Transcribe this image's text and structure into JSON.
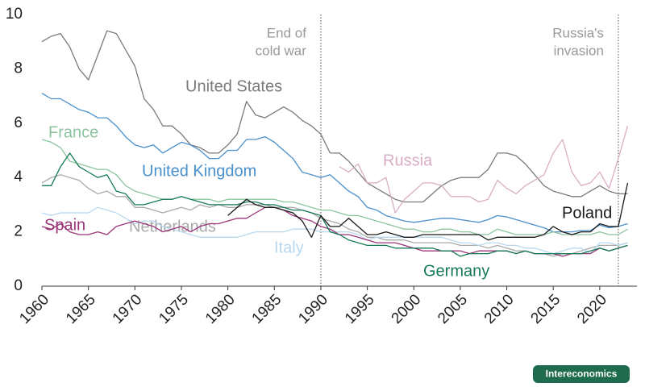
{
  "chart_data": {
    "type": "line",
    "x": [
      1960,
      1961,
      1962,
      1963,
      1964,
      1965,
      1966,
      1967,
      1968,
      1969,
      1970,
      1971,
      1972,
      1973,
      1974,
      1975,
      1976,
      1977,
      1978,
      1979,
      1980,
      1981,
      1982,
      1983,
      1984,
      1985,
      1986,
      1987,
      1988,
      1989,
      1990,
      1991,
      1992,
      1993,
      1994,
      1995,
      1996,
      1997,
      1998,
      1999,
      2000,
      2001,
      2002,
      2003,
      2004,
      2005,
      2006,
      2007,
      2008,
      2009,
      2010,
      2011,
      2012,
      2013,
      2014,
      2015,
      2016,
      2017,
      2018,
      2019,
      2020,
      2021,
      2022,
      2023
    ],
    "series": [
      {
        "name": "United States",
        "color": "#7a7a7a",
        "values": [
          9.0,
          9.2,
          9.3,
          8.8,
          8.0,
          7.6,
          8.5,
          9.4,
          9.3,
          8.7,
          8.1,
          6.9,
          6.5,
          5.9,
          5.9,
          5.6,
          5.2,
          5.1,
          4.9,
          4.9,
          5.2,
          5.6,
          6.8,
          6.3,
          6.2,
          6.4,
          6.6,
          6.4,
          6.1,
          5.9,
          5.6,
          4.9,
          4.9,
          4.6,
          4.2,
          3.8,
          3.6,
          3.4,
          3.2,
          3.1,
          3.1,
          3.1,
          3.4,
          3.7,
          3.9,
          4.0,
          4.0,
          4.0,
          4.3,
          4.9,
          4.9,
          4.8,
          4.5,
          4.1,
          3.7,
          3.5,
          3.4,
          3.3,
          3.3,
          3.5,
          3.7,
          3.5,
          3.4,
          3.4
        ]
      },
      {
        "name": "United Kingdom",
        "color": "#4a90cc",
        "values": [
          7.1,
          6.9,
          6.9,
          6.7,
          6.5,
          6.4,
          6.2,
          6.2,
          5.9,
          5.5,
          5.2,
          5.1,
          5.2,
          4.9,
          5.1,
          5.3,
          5.2,
          5.0,
          4.7,
          4.7,
          5.0,
          5.0,
          5.4,
          5.4,
          5.5,
          5.3,
          5.0,
          4.7,
          4.2,
          4.1,
          4.0,
          4.1,
          3.8,
          3.5,
          3.3,
          2.9,
          2.8,
          2.6,
          2.5,
          2.4,
          2.35,
          2.4,
          2.45,
          2.5,
          2.5,
          2.45,
          2.4,
          2.35,
          2.45,
          2.6,
          2.55,
          2.45,
          2.35,
          2.25,
          2.15,
          2.0,
          2.0,
          2.0,
          2.05,
          2.05,
          2.25,
          2.15,
          2.2,
          2.3
        ]
      },
      {
        "name": "France",
        "color": "#8cc4a0",
        "values": [
          5.4,
          5.3,
          5.1,
          4.6,
          4.5,
          4.4,
          4.3,
          4.3,
          4.1,
          3.7,
          3.5,
          3.4,
          3.3,
          3.2,
          3.2,
          3.3,
          3.2,
          3.2,
          3.2,
          3.1,
          3.2,
          3.2,
          3.2,
          3.2,
          3.2,
          3.2,
          3.1,
          3.1,
          3.0,
          2.9,
          2.8,
          2.8,
          2.7,
          2.6,
          2.6,
          2.5,
          2.4,
          2.3,
          2.2,
          2.1,
          2.1,
          2.0,
          2.0,
          2.1,
          2.1,
          2.0,
          2.0,
          1.9,
          1.9,
          2.1,
          2.0,
          1.9,
          1.9,
          1.9,
          1.9,
          2.0,
          1.9,
          1.9,
          1.9,
          1.9,
          2.0,
          1.9,
          1.9,
          2.1
        ]
      },
      {
        "name": "Netherlands",
        "color": "#aaaaaa",
        "values": [
          3.8,
          4.0,
          4.1,
          4.0,
          3.9,
          3.6,
          3.4,
          3.5,
          3.3,
          3.3,
          2.9,
          2.9,
          2.8,
          2.7,
          2.8,
          2.9,
          2.8,
          3.0,
          2.9,
          3.0,
          2.9,
          2.9,
          3.0,
          3.0,
          3.0,
          2.9,
          2.9,
          2.9,
          2.8,
          2.7,
          2.5,
          2.4,
          2.3,
          2.1,
          2.0,
          1.8,
          1.8,
          1.7,
          1.7,
          1.7,
          1.6,
          1.6,
          1.6,
          1.6,
          1.6,
          1.5,
          1.5,
          1.5,
          1.4,
          1.5,
          1.4,
          1.3,
          1.3,
          1.2,
          1.2,
          1.1,
          1.2,
          1.2,
          1.3,
          1.4,
          1.5,
          1.5,
          1.5,
          1.6
        ]
      },
      {
        "name": "Italy",
        "color": "#b8d8f0",
        "values": [
          2.7,
          2.6,
          2.7,
          2.7,
          2.7,
          2.7,
          2.9,
          2.8,
          2.7,
          2.5,
          2.3,
          2.4,
          2.4,
          2.2,
          2.1,
          2.0,
          1.9,
          1.8,
          1.8,
          1.8,
          1.8,
          1.8,
          1.9,
          2.0,
          2.0,
          2.0,
          2.0,
          2.1,
          2.1,
          2.1,
          2.0,
          2.0,
          2.0,
          2.0,
          1.9,
          1.7,
          1.8,
          1.8,
          1.8,
          1.8,
          1.8,
          1.8,
          1.8,
          1.8,
          1.7,
          1.6,
          1.6,
          1.5,
          1.6,
          1.6,
          1.5,
          1.5,
          1.4,
          1.4,
          1.3,
          1.2,
          1.3,
          1.4,
          1.4,
          1.2,
          1.6,
          1.6,
          1.5,
          1.6
        ]
      },
      {
        "name": "Spain",
        "color": "#9b3578",
        "values": [
          2.2,
          2.1,
          2.3,
          2.0,
          1.9,
          1.9,
          2.0,
          1.9,
          2.2,
          2.3,
          2.4,
          2.3,
          2.2,
          2.0,
          2.1,
          2.2,
          2.0,
          2.2,
          2.3,
          2.3,
          2.4,
          2.5,
          2.5,
          2.7,
          2.9,
          2.9,
          2.8,
          2.6,
          2.5,
          2.4,
          2.2,
          2.1,
          1.9,
          1.9,
          1.8,
          1.7,
          1.6,
          1.6,
          1.6,
          1.5,
          1.4,
          1.3,
          1.3,
          1.3,
          1.3,
          1.3,
          1.2,
          1.3,
          1.3,
          1.3,
          1.3,
          1.2,
          1.3,
          1.2,
          1.2,
          1.2,
          1.1,
          1.2,
          1.2,
          1.2,
          1.4,
          1.3,
          1.4,
          1.5
        ]
      },
      {
        "name": "Germany",
        "color": "#157a55",
        "values": [
          3.7,
          3.7,
          4.4,
          4.9,
          4.4,
          4.2,
          4.0,
          4.1,
          3.5,
          3.4,
          3.0,
          3.0,
          3.1,
          3.2,
          3.2,
          3.3,
          3.2,
          3.1,
          3.0,
          3.0,
          3.0,
          3.0,
          3.1,
          3.1,
          3.0,
          3.0,
          2.9,
          2.8,
          2.8,
          2.7,
          2.6,
          2.0,
          1.9,
          1.7,
          1.6,
          1.5,
          1.5,
          1.5,
          1.4,
          1.4,
          1.4,
          1.4,
          1.4,
          1.3,
          1.3,
          1.1,
          1.2,
          1.2,
          1.2,
          1.3,
          1.3,
          1.2,
          1.3,
          1.2,
          1.2,
          1.2,
          1.2,
          1.2,
          1.2,
          1.3,
          1.4,
          1.3,
          1.4,
          1.5
        ]
      },
      {
        "name": "Poland",
        "color": "#1a1a1a",
        "values": [
          null,
          null,
          null,
          null,
          null,
          null,
          null,
          null,
          null,
          null,
          null,
          null,
          null,
          null,
          null,
          null,
          null,
          null,
          null,
          null,
          2.6,
          2.9,
          3.2,
          3.0,
          2.9,
          2.9,
          2.8,
          2.7,
          2.4,
          1.8,
          2.6,
          2.2,
          2.2,
          2.5,
          2.2,
          1.9,
          1.9,
          2.0,
          1.9,
          1.8,
          1.8,
          1.9,
          1.9,
          1.9,
          1.9,
          1.9,
          1.9,
          1.9,
          1.7,
          1.8,
          1.8,
          1.8,
          1.8,
          1.8,
          1.9,
          2.2,
          2.0,
          1.9,
          2.0,
          2.0,
          2.3,
          2.2,
          2.2,
          3.8
        ]
      },
      {
        "name": "Russia",
        "color": "#d8aec4",
        "values": [
          null,
          null,
          null,
          null,
          null,
          null,
          null,
          null,
          null,
          null,
          null,
          null,
          null,
          null,
          null,
          null,
          null,
          null,
          null,
          null,
          null,
          null,
          null,
          null,
          null,
          null,
          null,
          null,
          null,
          null,
          null,
          null,
          4.4,
          4.2,
          4.5,
          3.8,
          3.8,
          4.0,
          2.7,
          3.2,
          3.5,
          3.8,
          3.8,
          3.7,
          3.3,
          3.3,
          3.3,
          3.1,
          3.2,
          3.9,
          3.6,
          3.4,
          3.7,
          3.9,
          4.1,
          4.9,
          5.4,
          4.2,
          3.7,
          3.8,
          4.2,
          3.6,
          4.7,
          5.9
        ]
      }
    ],
    "xlim": [
      1960,
      2024
    ],
    "ylim": [
      0,
      10
    ],
    "xticks": [
      1960,
      1965,
      1970,
      1975,
      1980,
      1985,
      1990,
      1995,
      2000,
      2005,
      2010,
      2015,
      2020
    ],
    "yticks": [
      0,
      2,
      4,
      6,
      8,
      10
    ],
    "annotations": [
      {
        "x": 1990,
        "text": [
          "End of",
          "cold war"
        ]
      },
      {
        "x": 2022,
        "text": [
          "Russia's",
          "invasion"
        ]
      }
    ],
    "source": "Intereconomics"
  }
}
